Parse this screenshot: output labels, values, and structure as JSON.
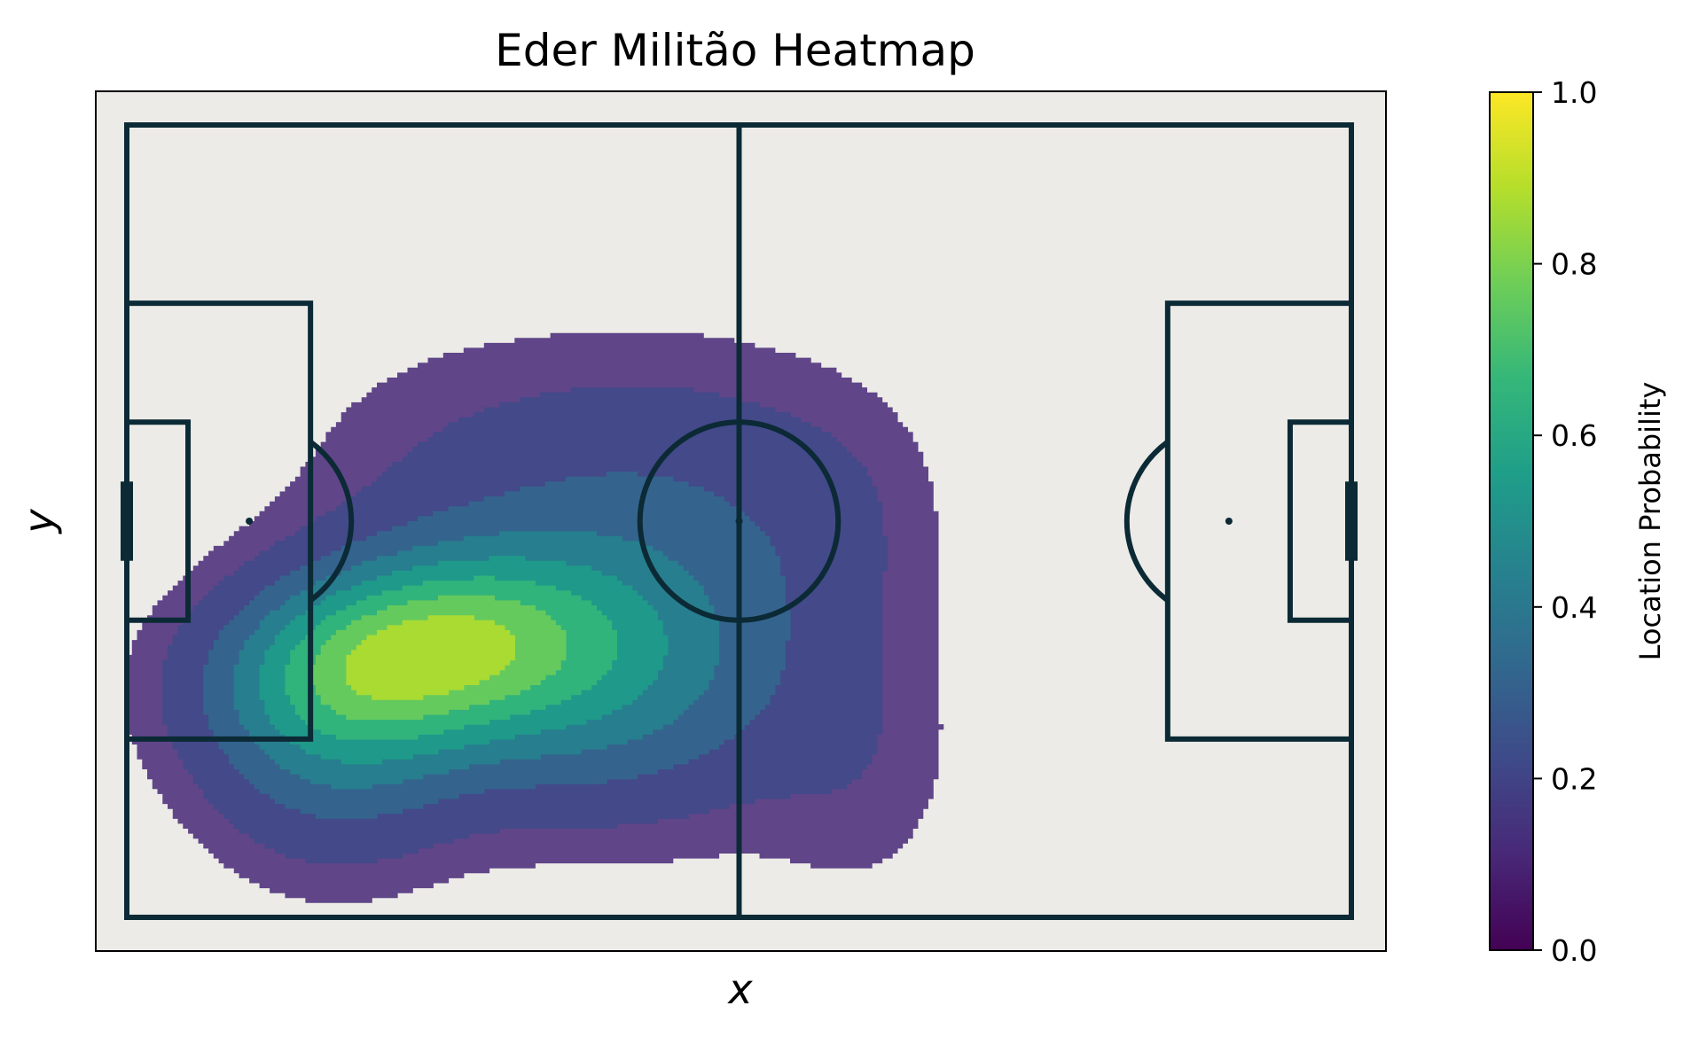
{
  "chart_data": {
    "type": "heatmap",
    "title": "Eder Militão Heatmap",
    "xlabel": "x",
    "ylabel": "y",
    "colorbar": {
      "label": "Location Probability",
      "range": [
        0,
        1
      ],
      "ticks": [
        "0.0",
        "0.2",
        "0.4",
        "0.6",
        "0.8",
        "1.0"
      ],
      "colormap": "viridis"
    },
    "pitch": {
      "units": "yards",
      "length": 120,
      "width": 80,
      "background": "#ecebe7",
      "line_color": "#0b2a35"
    },
    "density": {
      "peak": {
        "x": 33,
        "y": 53
      },
      "levels": [
        0.125,
        0.25,
        0.375,
        0.5,
        0.625,
        0.75,
        0.875
      ],
      "level_colors": [
        "#482878",
        "#3e4a89",
        "#31688e",
        "#26828e",
        "#1f9e89",
        "#35b779",
        "#6ece58",
        "#b5de2b",
        "#fde725"
      ]
    }
  }
}
